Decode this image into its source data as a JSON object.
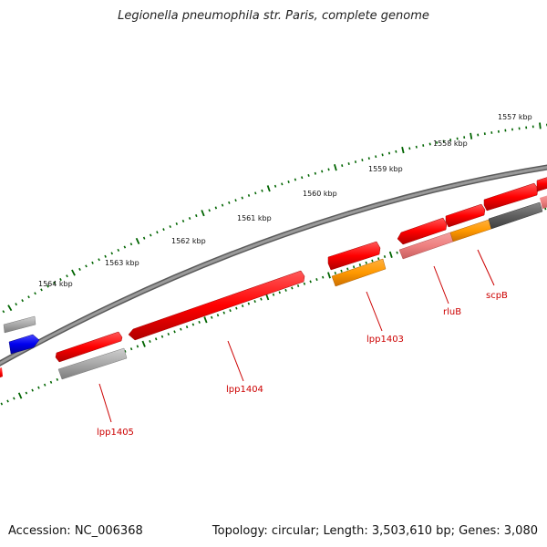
{
  "title": "Legionella pneumophila str. Paris, complete genome",
  "footer": {
    "accession": "Accession: NC_006368",
    "stats": "Topology: circular; Length: 3,503,610 bp; Genes: 3,080"
  },
  "ruler_labels": [
    "1557 kbp",
    "1558 kbp",
    "1559 kbp",
    "1560 kbp",
    "1561 kbp",
    "1562 kbp",
    "1563 kbp",
    "1564 kbp"
  ],
  "gene_labels": [
    "lpp1405",
    "lpp1404",
    "lpp1403",
    "rluB",
    "scpB"
  ],
  "colors": {
    "cds": "#ff0000",
    "rna": "#ff8c00",
    "gray_feature": "#a0a0a0",
    "pink_feature": "#f08080",
    "blue_feature": "#0000ee",
    "backbone": "#808080",
    "ticks": "#006400",
    "gene_label": "#cc0000"
  }
}
